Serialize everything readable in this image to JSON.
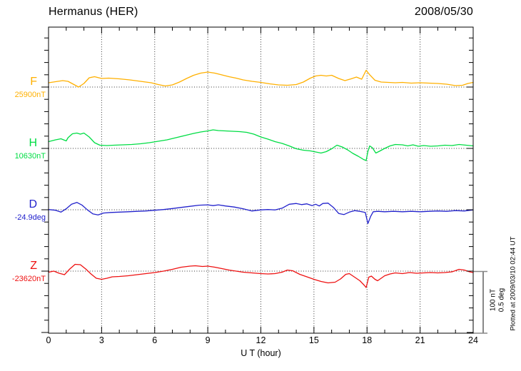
{
  "header": {
    "station": "Hermanus (HER)",
    "date": "2008/05/30"
  },
  "footer": {
    "plotted_note": "Plotted at 2009/03/10 02:44 UT"
  },
  "chart_data": {
    "type": "line",
    "title": "Hermanus (HER)",
    "date": "2008/05/30",
    "xlabel": "U T (hour)",
    "x_range": [
      0,
      24
    ],
    "x_ticks": [
      0,
      3,
      6,
      9,
      12,
      15,
      18,
      21,
      24
    ],
    "grid": "dotted vertical lines every 3 hours; dotted horizontal baseline per trace",
    "scale_bar": {
      "nt_label": "100 nT",
      "deg_label": "0.5 deg"
    },
    "series": [
      {
        "name": "F",
        "baseline_label": "25900nT",
        "baseline_value": 25900,
        "unit": "nT",
        "color": "#FFB000",
        "points_are": "deviation from baseline in nT vs hour UT",
        "points": [
          [
            0,
            7.0
          ],
          [
            0.4,
            8.7
          ],
          [
            0.8,
            10.5
          ],
          [
            1.1,
            9.3
          ],
          [
            1.4,
            4.7
          ],
          [
            1.7,
            0.0
          ],
          [
            2.0,
            5.8
          ],
          [
            2.3,
            15.1
          ],
          [
            2.6,
            16.9
          ],
          [
            3.0,
            14.0
          ],
          [
            3.4,
            14.5
          ],
          [
            4.0,
            13.4
          ],
          [
            4.6,
            11.6
          ],
          [
            5.2,
            9.3
          ],
          [
            5.8,
            7.0
          ],
          [
            6.2,
            4.1
          ],
          [
            6.6,
            1.7
          ],
          [
            7.0,
            3.5
          ],
          [
            7.4,
            8.1
          ],
          [
            7.8,
            14.0
          ],
          [
            8.2,
            19.2
          ],
          [
            8.6,
            22.7
          ],
          [
            9.0,
            24.4
          ],
          [
            9.4,
            22.7
          ],
          [
            9.8,
            19.8
          ],
          [
            10.2,
            16.9
          ],
          [
            10.6,
            14.5
          ],
          [
            11.0,
            11.6
          ],
          [
            11.5,
            9.3
          ],
          [
            12.0,
            7.6
          ],
          [
            12.5,
            5.2
          ],
          [
            13.0,
            3.5
          ],
          [
            13.5,
            2.9
          ],
          [
            14.0,
            4.1
          ],
          [
            14.4,
            8.1
          ],
          [
            14.8,
            14.5
          ],
          [
            15.1,
            18.0
          ],
          [
            15.4,
            19.2
          ],
          [
            15.7,
            18.0
          ],
          [
            16.0,
            19.2
          ],
          [
            16.4,
            14.0
          ],
          [
            16.75,
            10.5
          ],
          [
            17.1,
            13.4
          ],
          [
            17.4,
            16.3
          ],
          [
            17.7,
            12.8
          ],
          [
            17.95,
            27.3
          ],
          [
            18.15,
            20.0
          ],
          [
            18.45,
            11.0
          ],
          [
            18.8,
            8.1
          ],
          [
            19.2,
            7.6
          ],
          [
            19.6,
            7.0
          ],
          [
            20.0,
            7.6
          ],
          [
            20.5,
            6.4
          ],
          [
            21.0,
            7.0
          ],
          [
            21.5,
            6.4
          ],
          [
            22.0,
            5.8
          ],
          [
            22.5,
            4.7
          ],
          [
            23.0,
            2.3
          ],
          [
            23.4,
            2.9
          ],
          [
            23.7,
            5.8
          ],
          [
            24.0,
            7.6
          ]
        ]
      },
      {
        "name": "H",
        "baseline_label": "10630nT",
        "baseline_value": 10630,
        "unit": "nT",
        "color": "#00DD44",
        "points_are": "deviation from baseline in nT vs hour UT",
        "points": [
          [
            0,
            11.0
          ],
          [
            0.4,
            14.0
          ],
          [
            0.7,
            15.7
          ],
          [
            1.0,
            12.2
          ],
          [
            1.1,
            17.4
          ],
          [
            1.35,
            23.8
          ],
          [
            1.6,
            25.0
          ],
          [
            1.8,
            23.3
          ],
          [
            2.0,
            25.0
          ],
          [
            2.3,
            18.6
          ],
          [
            2.6,
            9.3
          ],
          [
            2.9,
            5.2
          ],
          [
            3.3,
            4.7
          ],
          [
            3.7,
            5.2
          ],
          [
            4.2,
            5.8
          ],
          [
            4.7,
            6.4
          ],
          [
            5.2,
            7.6
          ],
          [
            5.7,
            9.3
          ],
          [
            6.2,
            11.6
          ],
          [
            6.7,
            14.0
          ],
          [
            7.2,
            17.4
          ],
          [
            7.7,
            20.9
          ],
          [
            8.2,
            24.4
          ],
          [
            8.6,
            26.7
          ],
          [
            9.0,
            28.5
          ],
          [
            9.3,
            30.2
          ],
          [
            9.6,
            29.1
          ],
          [
            10.0,
            28.5
          ],
          [
            10.4,
            27.9
          ],
          [
            10.8,
            27.3
          ],
          [
            11.2,
            26.2
          ],
          [
            11.6,
            23.3
          ],
          [
            12.0,
            18.6
          ],
          [
            12.4,
            15.1
          ],
          [
            12.8,
            11.0
          ],
          [
            13.2,
            8.1
          ],
          [
            13.6,
            4.1
          ],
          [
            14.0,
            -0.6
          ],
          [
            14.4,
            -2.9
          ],
          [
            14.8,
            -4.1
          ],
          [
            15.1,
            -5.8
          ],
          [
            15.4,
            -7.6
          ],
          [
            15.7,
            -5.2
          ],
          [
            16.0,
            -0.6
          ],
          [
            16.3,
            5.2
          ],
          [
            16.6,
            2.3
          ],
          [
            16.9,
            -2.3
          ],
          [
            17.2,
            -8.1
          ],
          [
            17.5,
            -12.8
          ],
          [
            17.8,
            -18.0
          ],
          [
            17.95,
            -19.8
          ],
          [
            18.05,
            -5.0
          ],
          [
            18.15,
            4.1
          ],
          [
            18.3,
            1.2
          ],
          [
            18.5,
            -7.6
          ],
          [
            18.7,
            -4.7
          ],
          [
            19.0,
            0.0
          ],
          [
            19.3,
            4.1
          ],
          [
            19.6,
            6.4
          ],
          [
            20.0,
            5.8
          ],
          [
            20.3,
            4.1
          ],
          [
            20.6,
            5.8
          ],
          [
            20.9,
            3.5
          ],
          [
            21.2,
            4.7
          ],
          [
            21.6,
            3.5
          ],
          [
            22.0,
            4.1
          ],
          [
            22.4,
            5.2
          ],
          [
            22.8,
            4.7
          ],
          [
            23.2,
            6.4
          ],
          [
            23.6,
            5.2
          ],
          [
            24.0,
            4.1
          ]
        ]
      },
      {
        "name": "D",
        "baseline_label": "-24.9deg",
        "baseline_value": -24.9,
        "unit": "deg",
        "color": "#2222CC",
        "points_are": "deviation from baseline in degrees vs hour UT",
        "points": [
          [
            0,
            0.002
          ],
          [
            0.4,
            -0.004
          ],
          [
            0.7,
            -0.019
          ],
          [
            1.0,
            0.008
          ],
          [
            1.3,
            0.045
          ],
          [
            1.6,
            0.06
          ],
          [
            1.9,
            0.037
          ],
          [
            2.2,
            -0.001
          ],
          [
            2.5,
            -0.033
          ],
          [
            2.8,
            -0.042
          ],
          [
            3.1,
            -0.027
          ],
          [
            3.5,
            -0.022
          ],
          [
            4.0,
            -0.019
          ],
          [
            4.5,
            -0.016
          ],
          [
            5.0,
            -0.013
          ],
          [
            5.5,
            -0.01
          ],
          [
            6.0,
            -0.004
          ],
          [
            6.5,
            0.002
          ],
          [
            7.0,
            0.01
          ],
          [
            7.5,
            0.019
          ],
          [
            8.0,
            0.028
          ],
          [
            8.5,
            0.037
          ],
          [
            9.0,
            0.04
          ],
          [
            9.3,
            0.034
          ],
          [
            9.6,
            0.04
          ],
          [
            10.0,
            0.031
          ],
          [
            10.5,
            0.022
          ],
          [
            11.0,
            0.008
          ],
          [
            11.5,
            -0.01
          ],
          [
            12.0,
            -0.001
          ],
          [
            12.4,
            0.002
          ],
          [
            12.8,
            -0.001
          ],
          [
            13.2,
            0.013
          ],
          [
            13.6,
            0.045
          ],
          [
            14.0,
            0.051
          ],
          [
            14.3,
            0.042
          ],
          [
            14.6,
            0.048
          ],
          [
            14.9,
            0.034
          ],
          [
            15.1,
            0.045
          ],
          [
            15.3,
            0.031
          ],
          [
            15.5,
            0.051
          ],
          [
            15.8,
            0.054
          ],
          [
            16.1,
            0.019
          ],
          [
            16.4,
            -0.03
          ],
          [
            16.7,
            -0.039
          ],
          [
            17.0,
            -0.019
          ],
          [
            17.3,
            -0.007
          ],
          [
            17.6,
            -0.013
          ],
          [
            17.9,
            -0.022
          ],
          [
            18.05,
            -0.112
          ],
          [
            18.2,
            -0.056
          ],
          [
            18.35,
            -0.016
          ],
          [
            18.6,
            -0.013
          ],
          [
            19.0,
            -0.016
          ],
          [
            19.5,
            -0.013
          ],
          [
            20.0,
            -0.016
          ],
          [
            20.5,
            -0.013
          ],
          [
            21.0,
            -0.016
          ],
          [
            21.5,
            -0.013
          ],
          [
            22.0,
            -0.01
          ],
          [
            22.5,
            -0.013
          ],
          [
            23.0,
            -0.007
          ],
          [
            23.5,
            -0.01
          ],
          [
            24.0,
            -0.001
          ]
        ]
      },
      {
        "name": "Z",
        "baseline_label": "-23620nT",
        "baseline_value": -23620,
        "unit": "nT",
        "color": "#EE1111",
        "points_are": "deviation from baseline in nT vs hour UT",
        "points": [
          [
            0,
            -1.7
          ],
          [
            0.3,
            0.0
          ],
          [
            0.6,
            -3.5
          ],
          [
            0.9,
            -5.8
          ],
          [
            1.2,
            3.5
          ],
          [
            1.5,
            11.0
          ],
          [
            1.8,
            10.5
          ],
          [
            2.1,
            3.5
          ],
          [
            2.4,
            -4.7
          ],
          [
            2.7,
            -11.6
          ],
          [
            3.0,
            -13.4
          ],
          [
            3.3,
            -11.6
          ],
          [
            3.6,
            -9.3
          ],
          [
            4.0,
            -8.7
          ],
          [
            4.5,
            -7.6
          ],
          [
            5.0,
            -5.8
          ],
          [
            5.5,
            -4.1
          ],
          [
            6.0,
            -2.3
          ],
          [
            6.5,
            0.0
          ],
          [
            7.0,
            2.9
          ],
          [
            7.5,
            6.4
          ],
          [
            8.0,
            8.1
          ],
          [
            8.3,
            8.7
          ],
          [
            8.7,
            7.6
          ],
          [
            9.0,
            8.1
          ],
          [
            9.4,
            6.4
          ],
          [
            9.8,
            4.1
          ],
          [
            10.2,
            1.7
          ],
          [
            10.6,
            0.0
          ],
          [
            11.0,
            -1.7
          ],
          [
            11.5,
            -2.9
          ],
          [
            12.0,
            -4.1
          ],
          [
            12.4,
            -4.7
          ],
          [
            12.8,
            -4.1
          ],
          [
            13.2,
            -1.7
          ],
          [
            13.5,
            1.7
          ],
          [
            13.8,
            0.6
          ],
          [
            14.2,
            -5.2
          ],
          [
            14.6,
            -9.3
          ],
          [
            15.0,
            -13.4
          ],
          [
            15.4,
            -16.9
          ],
          [
            15.8,
            -19.2
          ],
          [
            16.2,
            -18.0
          ],
          [
            16.5,
            -12.8
          ],
          [
            16.8,
            -5.2
          ],
          [
            17.0,
            -4.1
          ],
          [
            17.3,
            -9.9
          ],
          [
            17.6,
            -15.7
          ],
          [
            17.85,
            -23.3
          ],
          [
            17.95,
            -26.7
          ],
          [
            18.1,
            -9.9
          ],
          [
            18.25,
            -8.1
          ],
          [
            18.45,
            -13.4
          ],
          [
            18.6,
            -15.7
          ],
          [
            18.8,
            -11.6
          ],
          [
            19.0,
            -7.6
          ],
          [
            19.3,
            -4.7
          ],
          [
            19.6,
            -2.9
          ],
          [
            20.0,
            -4.1
          ],
          [
            20.4,
            -2.3
          ],
          [
            20.8,
            -3.5
          ],
          [
            21.2,
            -2.9
          ],
          [
            21.6,
            -2.3
          ],
          [
            22.0,
            -2.9
          ],
          [
            22.4,
            -2.3
          ],
          [
            22.8,
            -1.2
          ],
          [
            23.2,
            2.9
          ],
          [
            23.5,
            1.7
          ],
          [
            23.8,
            -1.2
          ],
          [
            24.0,
            -2.3
          ]
        ]
      }
    ],
    "colors": {
      "grid": "#333333",
      "frame": "#000000",
      "scale_bar": "#888888"
    }
  }
}
